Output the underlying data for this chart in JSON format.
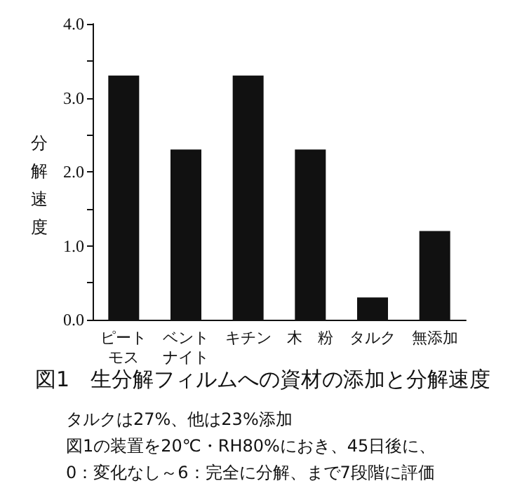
{
  "chart_data": {
    "type": "bar",
    "title": "図1　生分解フィルムへの資材の添加と分解速度",
    "ylabel": "分解速度",
    "categories": [
      "ピートモス",
      "ベントナイト",
      "キチン",
      "木　粉",
      "タルク",
      "無添加"
    ],
    "values": [
      3.3,
      2.3,
      3.3,
      2.3,
      0.3,
      1.2
    ],
    "color": "#111111",
    "ylim": [
      0,
      4
    ],
    "yticks": [
      {
        "value": 0,
        "label": "0.0"
      },
      {
        "value": 0.5,
        "label": null
      },
      {
        "value": 1,
        "label": "1.0"
      },
      {
        "value": 1.5,
        "label": null
      },
      {
        "value": 2,
        "label": "2.0"
      },
      {
        "value": 2.5,
        "label": null
      },
      {
        "value": 3,
        "label": "3.0"
      },
      {
        "value": 3.5,
        "label": null
      },
      {
        "value": 4,
        "label": "4.0"
      }
    ],
    "grid": false,
    "annotations": [
      "タルクは27%、他は23%添加",
      "図1の装置を20℃・RH80%におき、45日後に、",
      "0：変化なし～6：完全に分解、まで7段階に評価"
    ]
  }
}
